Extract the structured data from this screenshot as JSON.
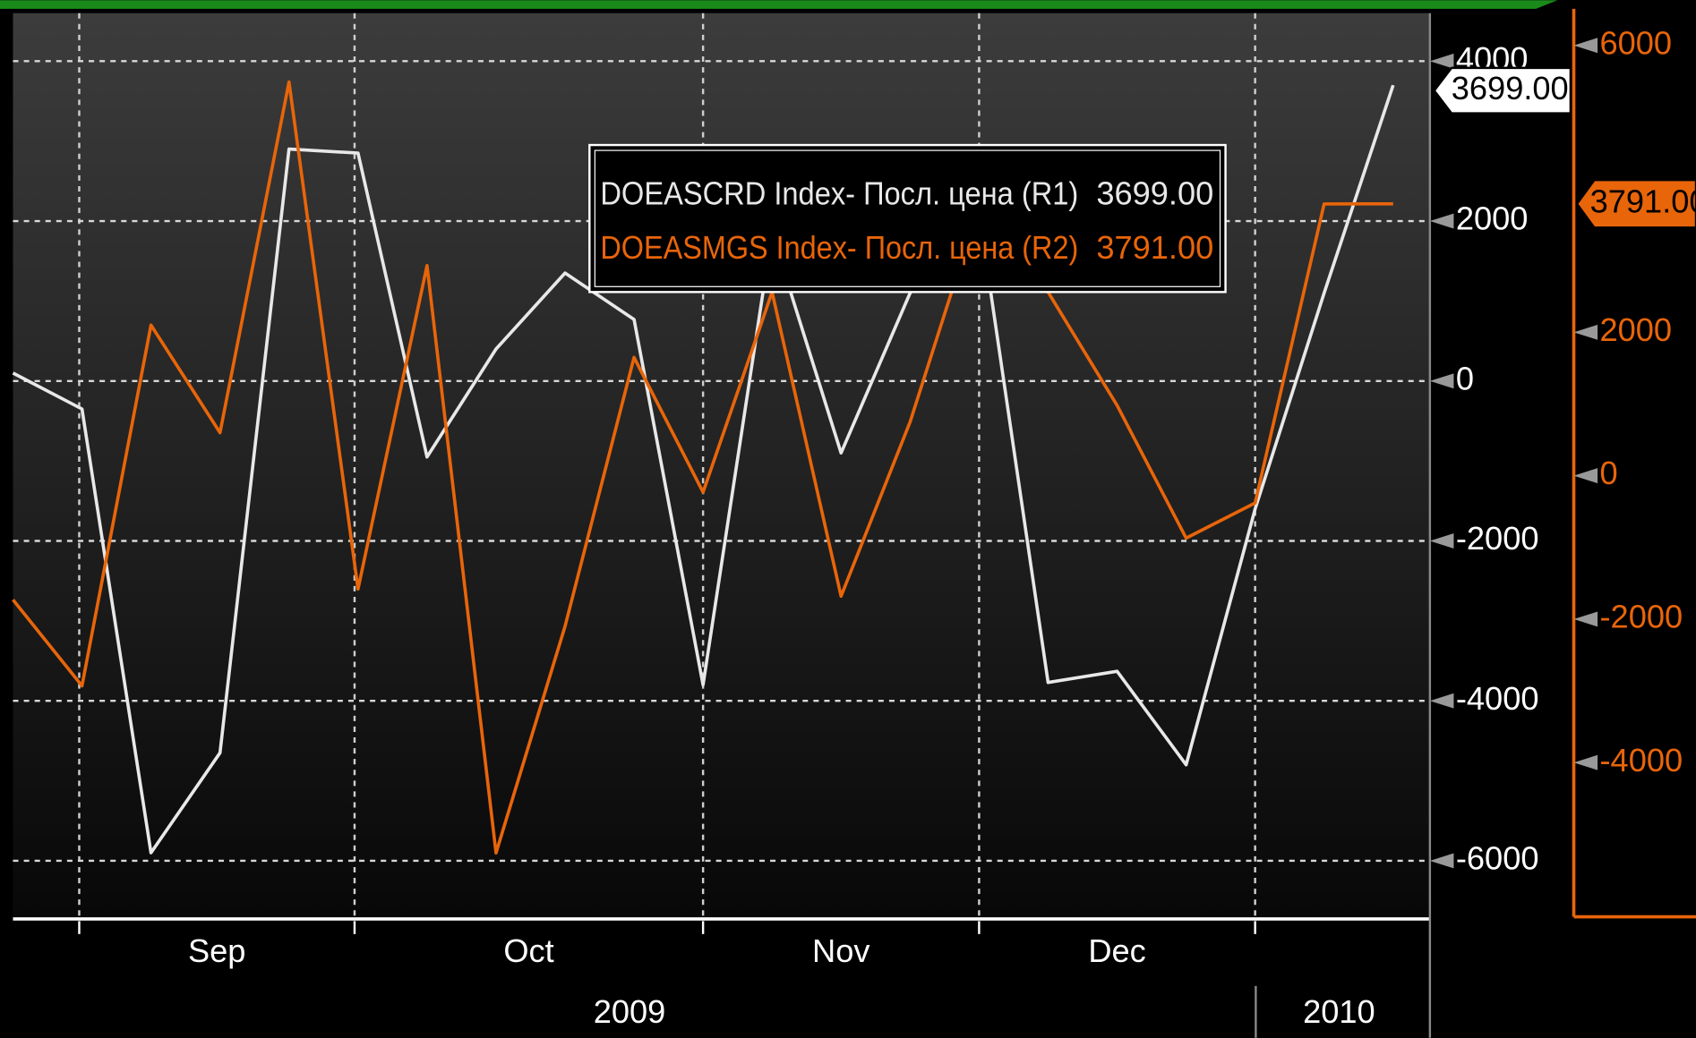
{
  "chart_data": {
    "type": "line",
    "month_labels": [
      "Sep",
      "Oct",
      "Nov",
      "Dec"
    ],
    "year_labels": [
      "2009",
      "2010"
    ],
    "series": [
      {
        "name": "DOEASCRD Index- Посл. цена (R1)",
        "color": "#e8e8e8",
        "axis": "y",
        "last_label": "3699.00",
        "values": [
          100,
          -350,
          -5900,
          -4650,
          2900,
          2850,
          -950,
          400,
          1350,
          770,
          -3800,
          1850,
          -900,
          1100,
          2100,
          -3770,
          -3630,
          -4800,
          -1600,
          1100,
          3699
        ]
      },
      {
        "name": "DOEASMGS Index- Посл. цена (R2)",
        "color": "#e8650a",
        "axis": "y2",
        "last_label": "3791.00",
        "values": [
          -1730,
          -2930,
          2100,
          600,
          5490,
          -1580,
          2930,
          -5260,
          -2100,
          1650,
          -230,
          2560,
          -1680,
          750,
          3760,
          2560,
          980,
          -870,
          -380,
          3790,
          3791
        ]
      }
    ],
    "ylim": [
      -6700,
      4600
    ],
    "yticks": [
      -6000,
      -4000,
      -2000,
      0,
      2000,
      4000
    ],
    "y2lim": [
      -6150,
      6450
    ],
    "y2ticks": [
      -4000,
      -2000,
      0,
      2000,
      6000
    ],
    "grid": true
  }
}
